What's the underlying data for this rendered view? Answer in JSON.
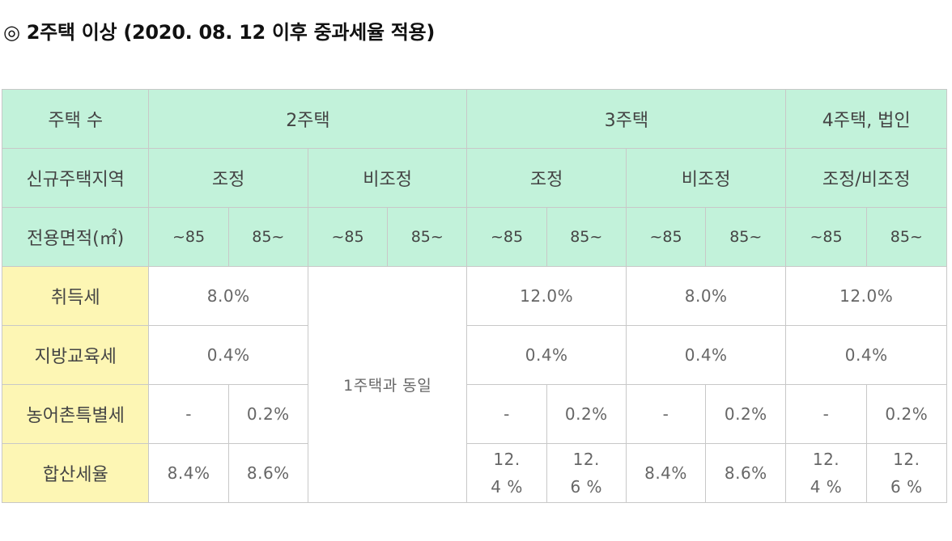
{
  "title": "◎ 2주택 이상 (2020. 08. 12 이후 중과세율 적용)",
  "header": {
    "row1": {
      "label": "주택 수",
      "col2": "2주택",
      "col3": "3주택",
      "col4": "4주택, 법인"
    },
    "row2": {
      "label": "신규주택지역",
      "regulated": "조정",
      "non_regulated": "비조정",
      "col4": "조정/비조정"
    },
    "row3": {
      "label": "전용면적(㎡)",
      "under85": "~85",
      "over85": "85~"
    }
  },
  "rows": {
    "acquisition_tax": {
      "label": "취득세",
      "c2_regulated": "8.0%",
      "c3_regulated": "12.0%",
      "c3_non_regulated": "8.0%",
      "c4": "12.0%"
    },
    "education_tax": {
      "label": "지방교육세",
      "c2_regulated": "0.4%",
      "c3_regulated": "0.4%",
      "c3_non_regulated": "0.4%",
      "c4": "0.4%"
    },
    "rural_tax": {
      "label": "농어촌특별세",
      "dash": "-",
      "value": "0.2%"
    },
    "total": {
      "label": "합산세율",
      "a": "8.4%",
      "b": "8.6%",
      "c": "12.4 %",
      "d": "12.6 %"
    }
  },
  "same_as_one_house": "1주택과 동일"
}
